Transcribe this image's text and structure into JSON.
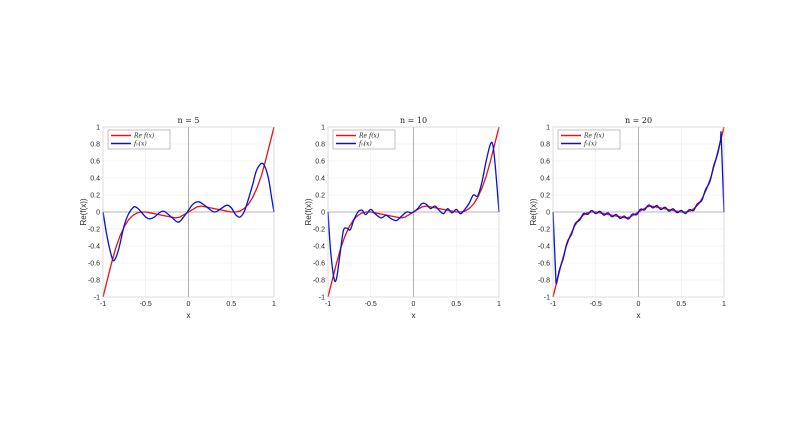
{
  "colors": {
    "red": "#e0141c",
    "blue": "#0a10d0",
    "grid": "#ececec",
    "zero_line": "#a0a0a0"
  },
  "chart_data": [
    {
      "type": "line",
      "title": "n = 5",
      "xlabel": "x",
      "ylabel": "Re(f(x))",
      "xlim": [
        -1,
        1
      ],
      "ylim": [
        -1,
        1
      ],
      "xticks": [
        "-1",
        "-0.5",
        "0",
        "0.5",
        "1"
      ],
      "yticks": [
        "-1",
        "-0.8",
        "-0.6",
        "-0.4",
        "-0.2",
        "0",
        "0.2",
        "0.4",
        "0.6",
        "0.8",
        "1"
      ],
      "grid": true,
      "legend": [
        "Re f(x)",
        "f_n(x)"
      ],
      "legend_position": "upper left",
      "series": [
        {
          "name": "Re f(x)",
          "color": "red",
          "x": [
            -1,
            -0.95,
            -0.9,
            -0.85,
            -0.8,
            -0.75,
            -0.7,
            -0.65,
            -0.6,
            -0.55,
            -0.5,
            -0.45,
            -0.4,
            -0.35,
            -0.3,
            -0.25,
            -0.2,
            -0.15,
            -0.1,
            -0.05,
            0,
            0.05,
            0.1,
            0.15,
            0.2,
            0.25,
            0.3,
            0.35,
            0.4,
            0.45,
            0.5,
            0.55,
            0.6,
            0.65,
            0.7,
            0.75,
            0.8,
            0.85,
            0.9,
            0.95,
            1
          ],
          "y": [
            -1,
            -0.8,
            -0.6,
            -0.42,
            -0.28,
            -0.17,
            -0.09,
            -0.04,
            -0.01,
            0,
            0,
            -0.01,
            -0.02,
            -0.03,
            -0.04,
            -0.05,
            -0.06,
            -0.07,
            -0.06,
            -0.03,
            0,
            0.03,
            0.06,
            0.07,
            0.06,
            0.05,
            0.04,
            0.03,
            0.02,
            0.01,
            0,
            0,
            0.01,
            0.04,
            0.09,
            0.17,
            0.28,
            0.42,
            0.6,
            0.8,
            1
          ]
        },
        {
          "name": "f_n(x)",
          "color": "blue",
          "x": [
            -1,
            -0.95,
            -0.9,
            -0.87,
            -0.82,
            -0.75,
            -0.7,
            -0.65,
            -0.62,
            -0.57,
            -0.5,
            -0.45,
            -0.4,
            -0.3,
            -0.2,
            -0.12,
            -0.05,
            0,
            0.05,
            0.12,
            0.2,
            0.3,
            0.38,
            0.45,
            0.5,
            0.55,
            0.6,
            0.65,
            0.7,
            0.75,
            0.8,
            0.87,
            0.93,
            0.97,
            1
          ],
          "y": [
            0,
            -0.3,
            -0.52,
            -0.57,
            -0.45,
            -0.15,
            -0.02,
            0.05,
            0.06,
            0.02,
            -0.06,
            -0.08,
            -0.06,
            0.01,
            -0.06,
            -0.12,
            -0.05,
            0.02,
            0.09,
            0.12,
            0.07,
            0.0,
            0.04,
            0.08,
            0.05,
            -0.03,
            -0.06,
            0.0,
            0.15,
            0.32,
            0.5,
            0.57,
            0.42,
            0.18,
            0
          ]
        }
      ]
    },
    {
      "type": "line",
      "title": "n = 10",
      "xlabel": "x",
      "ylabel": "Re(f(x))",
      "xlim": [
        -1,
        1
      ],
      "ylim": [
        -1,
        1
      ],
      "xticks": [
        "-1",
        "-0.5",
        "0",
        "0.5",
        "1"
      ],
      "yticks": [
        "-1",
        "-0.8",
        "-0.6",
        "-0.4",
        "-0.2",
        "0",
        "0.2",
        "0.4",
        "0.6",
        "0.8",
        "1"
      ],
      "grid": true,
      "legend": [
        "Re f(x)",
        "f_n(x)"
      ],
      "legend_position": "upper left",
      "series": [
        {
          "name": "Re f(x)",
          "color": "red",
          "same_as_panel": 0
        },
        {
          "name": "f_n(x)",
          "color": "blue",
          "x": [
            -1,
            -0.97,
            -0.93,
            -0.9,
            -0.86,
            -0.82,
            -0.78,
            -0.74,
            -0.7,
            -0.65,
            -0.6,
            -0.56,
            -0.5,
            -0.45,
            -0.38,
            -0.32,
            -0.26,
            -0.2,
            -0.14,
            -0.08,
            -0.03,
            0,
            0.05,
            0.1,
            0.15,
            0.2,
            0.25,
            0.3,
            0.35,
            0.4,
            0.45,
            0.5,
            0.55,
            0.6,
            0.65,
            0.7,
            0.75,
            0.8,
            0.85,
            0.9,
            0.93,
            0.96,
            1
          ],
          "y": [
            0,
            -0.45,
            -0.78,
            -0.78,
            -0.5,
            -0.22,
            -0.19,
            -0.21,
            -0.1,
            0.0,
            0.02,
            -0.03,
            0.03,
            -0.02,
            -0.07,
            -0.04,
            -0.08,
            -0.1,
            -0.05,
            0.0,
            -0.01,
            0.0,
            0.04,
            0.1,
            0.09,
            0.04,
            0.07,
            0.02,
            -0.02,
            0.04,
            -0.01,
            0.03,
            -0.02,
            0.03,
            0.1,
            0.2,
            0.19,
            0.35,
            0.6,
            0.8,
            0.78,
            0.5,
            0
          ]
        }
      ]
    },
    {
      "type": "line",
      "title": "n = 20",
      "xlabel": "x",
      "ylabel": "Re(f(x))",
      "xlim": [
        -1,
        1
      ],
      "ylim": [
        -1,
        1
      ],
      "xticks": [
        "-1",
        "-0.5",
        "0",
        "0.5",
        "1"
      ],
      "yticks": [
        "-1",
        "-0.8",
        "-0.6",
        "-0.4",
        "-0.2",
        "0",
        "0.2",
        "0.4",
        "0.6",
        "0.8",
        "1"
      ],
      "grid": true,
      "legend": [
        "Re f(x)",
        "f_n(x)"
      ],
      "legend_position": "upper left",
      "series": [
        {
          "name": "Re f(x)",
          "color": "red",
          "same_as_panel": 0
        },
        {
          "name": "f_n(x)",
          "color": "blue",
          "description": "closely tracks Re f(x) with small high-frequency ripples; drops to 0 at x=±1 with overshoot -0.95 near x=-0.97 and 0.95 near x=0.97"
        }
      ]
    }
  ],
  "panels": [
    {
      "title": "n = 5",
      "ylabel": "Re(f(x))",
      "xlabel": "x",
      "legend_1": "Re f(x)",
      "legend_2": "fₙ(x)"
    },
    {
      "title": "n = 10",
      "ylabel": "Re(f(x))",
      "xlabel": "x",
      "legend_1": "Re f(x)",
      "legend_2": "fₙ(x)"
    },
    {
      "title": "n = 20",
      "ylabel": "Re(f(x))",
      "xlabel": "x",
      "legend_1": "Re f(x)",
      "legend_2": "fₙ(x)"
    }
  ]
}
